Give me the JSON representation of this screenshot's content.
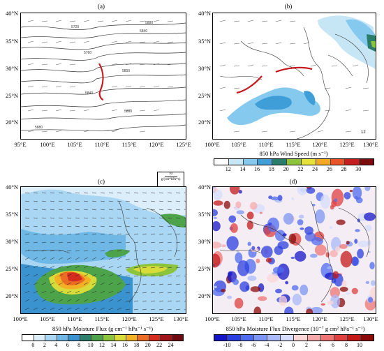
{
  "panels": {
    "a": {
      "label": "(a)",
      "y_ticks": [
        "40°N",
        "35°N",
        "30°N",
        "25°N",
        "20°N"
      ],
      "x_ticks": [
        "95°E",
        "100°E",
        "105°E",
        "110°E",
        "115°E",
        "120°E",
        "125°E"
      ],
      "contour_labels": [
        "5880",
        "5840",
        "5720",
        "5760",
        "5800",
        "5840",
        "5880",
        "5880"
      ]
    },
    "b": {
      "label": "(b)",
      "y_ticks": [
        "40°N",
        "35°N",
        "30°N",
        "25°N",
        "20°N"
      ],
      "x_ticks": [
        "100°E",
        "105°E",
        "110°E",
        "115°E",
        "120°E",
        "125°E",
        "130°E"
      ],
      "corner_value": "12",
      "colorbar_title": "850 hPa Wind Speed (m s⁻¹)",
      "colorbar_ticks": [
        "12",
        "14",
        "16",
        "18",
        "20",
        "22",
        "24",
        "26",
        "28",
        "30"
      ],
      "colorbar_colors": [
        "#ffffff",
        "#c6e6f6",
        "#86c9ee",
        "#3f9ed8",
        "#2a7d6a",
        "#8cc43c",
        "#e8e03a",
        "#f5a623",
        "#e8542a",
        "#c41e1e",
        "#7a0c0c"
      ]
    },
    "c": {
      "label": "(c)",
      "y_ticks": [
        "40°N",
        "35°N",
        "30°N",
        "25°N",
        "20°N"
      ],
      "x_ticks": [
        "100°E",
        "105°E",
        "110°E",
        "115°E",
        "120°E",
        "125°E",
        "130°E"
      ],
      "ref_vector_value": "10",
      "ref_vector_unit": "g/(cm*hPa*s)",
      "colorbar_title": "850 hPa Moisture Flux (g cm⁻¹ hPa⁻¹ s⁻¹)",
      "colorbar_ticks": [
        "0",
        "2",
        "4",
        "6",
        "8",
        "10",
        "12",
        "14",
        "16",
        "18",
        "20",
        "22",
        "24"
      ],
      "colorbar_colors": [
        "#ffffff",
        "#dbeefa",
        "#a9d6f2",
        "#6fb8e6",
        "#3a93cf",
        "#2e7f6c",
        "#4ca34a",
        "#8cc43c",
        "#d8dc3a",
        "#f2b125",
        "#ec6c24",
        "#d42c1e",
        "#a0161a",
        "#6e0a10"
      ]
    },
    "d": {
      "label": "(d)",
      "y_ticks": [
        "40°N",
        "35°N",
        "30°N",
        "25°N",
        "20°N"
      ],
      "x_ticks": [
        "100°E",
        "105°E",
        "110°E",
        "115°E",
        "120°E",
        "125°E",
        "130°E"
      ],
      "colorbar_title": "850 hPa Moisture Flux Divergence (10⁻⁷ g cm² hPa⁻¹ s⁻¹)",
      "colorbar_ticks": [
        "-10",
        "-8",
        "-6",
        "-4",
        "-2",
        "0",
        "2",
        "4",
        "6",
        "8",
        "10"
      ],
      "colorbar_colors": [
        "#1515c8",
        "#2c3fe0",
        "#4f6bf0",
        "#7d96f6",
        "#aab9fa",
        "#d6dcfc",
        "#fbd6d6",
        "#f7a9a9",
        "#ef7474",
        "#e04040",
        "#c41a1a",
        "#8c0a0a"
      ]
    }
  }
}
